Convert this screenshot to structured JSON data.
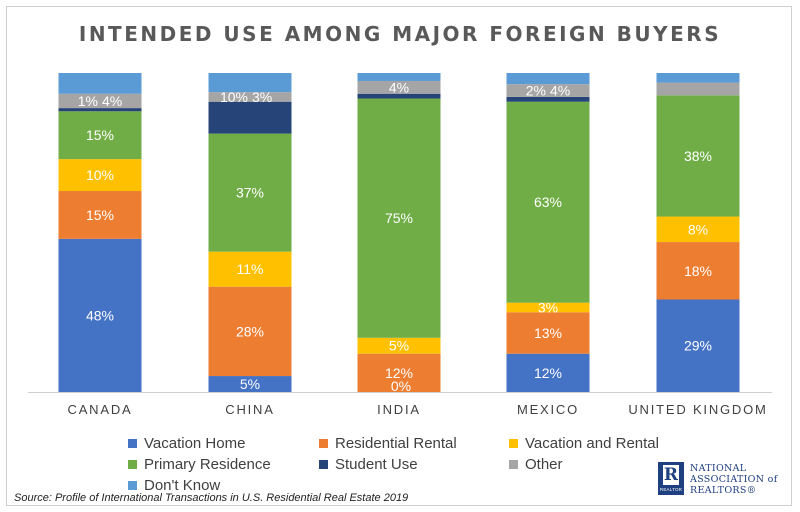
{
  "chart_data": {
    "type": "bar",
    "stacked": true,
    "title": "INTENDED USE AMONG MAJOR FOREIGN BUYERS",
    "xlabel": "",
    "ylabel": "",
    "ylim": [
      0,
      100
    ],
    "grid": false,
    "legend_position": "bottom",
    "categories": [
      "CANADA",
      "CHINA",
      "INDIA",
      "MEXICO",
      "UNITED KINGDOM"
    ],
    "series": [
      {
        "name": "Vacation Home",
        "color": "#4472C4",
        "values": [
          48,
          5,
          0,
          12,
          29
        ],
        "labels": [
          "48%",
          "5%",
          "",
          "12%",
          "29%"
        ]
      },
      {
        "name": "Residential Rental",
        "color": "#ED7D31",
        "values": [
          15,
          28,
          12,
          13,
          18
        ],
        "labels": [
          "15%",
          "28%",
          "12%",
          "13%",
          "18%"
        ]
      },
      {
        "name": "Vacation and Rental",
        "color": "#FFC000",
        "values": [
          10,
          11,
          5,
          3,
          8
        ],
        "labels": [
          "10%",
          "11%",
          "5%",
          "3%",
          "8%"
        ]
      },
      {
        "name": "Primary Residence",
        "color": "#70AD47",
        "values": [
          15,
          37,
          75,
          63,
          38
        ],
        "labels": [
          "15%",
          "37%",
          "75%",
          "63%",
          "38%"
        ]
      },
      {
        "name": "Student Use",
        "color": "#264478",
        "values": [
          1,
          10,
          1.5,
          1.5,
          0
        ],
        "labels": [
          "1%",
          "10%",
          "",
          "2%",
          ""
        ]
      },
      {
        "name": "Other",
        "color": "#A5A5A5",
        "values": [
          4.5,
          3,
          4,
          4,
          4
        ],
        "labels": [
          "4%",
          "3%",
          "4%",
          "4%",
          ""
        ]
      },
      {
        "name": "Don't Know",
        "color": "#5B9BD5",
        "values": [
          6.5,
          6,
          2.5,
          3.5,
          3
        ],
        "labels": [
          "",
          "",
          "",
          "",
          ""
        ]
      }
    ],
    "extra_labels": [
      {
        "category": "INDIA",
        "text": "0%"
      }
    ]
  },
  "source_note": "Source: Profile of International Transactions in U.S. Residential Real Estate 2019",
  "logo": {
    "mark_letter": "R",
    "mark_subtext": "REALTOR",
    "line1": "NATIONAL",
    "line2": "ASSOCIATION of",
    "line3": "REALTORS®"
  }
}
